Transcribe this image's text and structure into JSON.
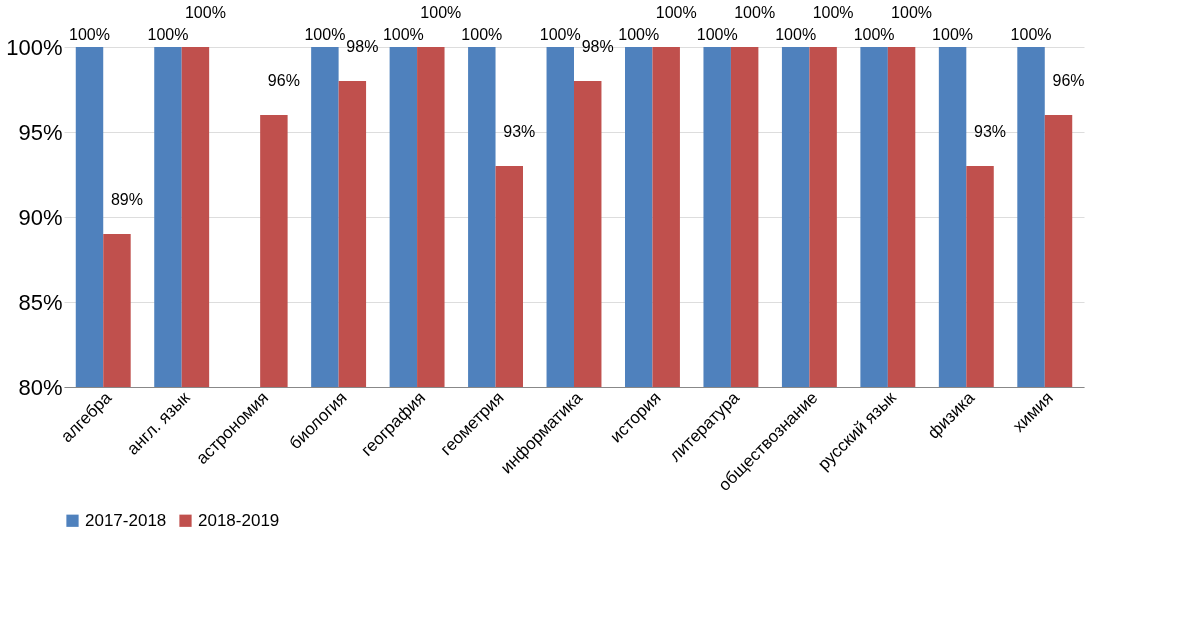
{
  "chart_data": {
    "type": "bar",
    "categories": [
      "алгебра",
      "англ. язык",
      "астрономия",
      "биология",
      "география",
      "геометрия",
      "информатика",
      "история",
      "литература",
      "обществознание",
      "русский язык",
      "физика",
      "химия"
    ],
    "series": [
      {
        "name": "2017-2018",
        "color": "#4f81bd",
        "values": [
          100,
          100,
          null,
          100,
          100,
          100,
          100,
          100,
          100,
          100,
          100,
          100,
          100
        ],
        "value_labels": [
          "100%",
          "100%",
          null,
          "100%",
          "100%",
          "100%",
          "100%",
          "100%",
          "100%",
          "100%",
          "100%",
          "100%",
          "100%"
        ]
      },
      {
        "name": "2018-2019",
        "color": "#c0504d",
        "values": [
          89,
          100,
          96,
          98,
          100,
          93,
          98,
          100,
          100,
          100,
          100,
          93,
          96
        ],
        "value_labels": [
          "89%",
          "100%",
          "96%",
          "98%",
          "100%",
          "93%",
          "98%",
          "100%",
          "100%",
          "100%",
          "100%",
          "93%",
          "96%"
        ]
      }
    ],
    "ylim": [
      80,
      100
    ],
    "yticks": [
      {
        "value": 80,
        "label": "80%"
      },
      {
        "value": 85,
        "label": "85%"
      },
      {
        "value": 90,
        "label": "90%"
      },
      {
        "value": 95,
        "label": "95%"
      },
      {
        "value": 100,
        "label": "100%"
      }
    ],
    "grid": "y",
    "legend": "bottom"
  }
}
